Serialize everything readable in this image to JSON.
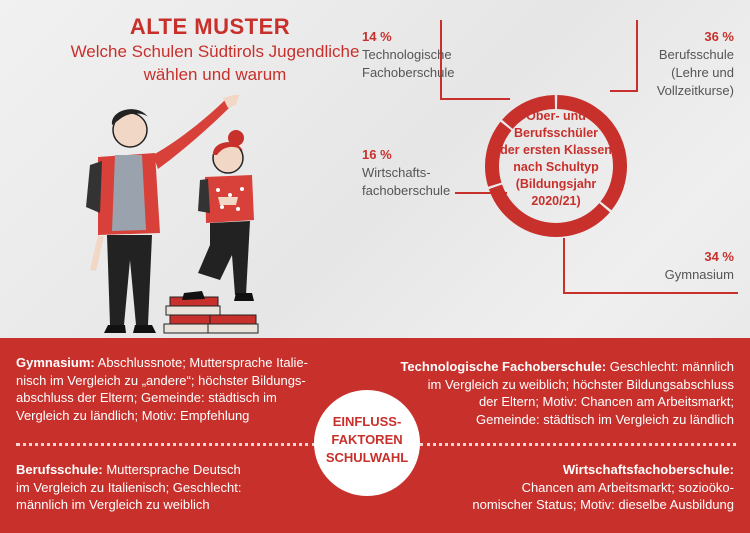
{
  "header": {
    "title": "ALTE MUSTER",
    "subtitle_line1": "Welche Schulen Südtirols Jugendliche",
    "subtitle_line2": "wählen und warum"
  },
  "chart_data": {
    "type": "pie",
    "center_label": [
      "Ober- und",
      "Berufsschüler",
      "der ersten Klassen",
      "nach Schultyp",
      "(Bildungsjahr",
      "2020/21)"
    ],
    "categories": [
      "Berufsschule (Lehre und Vollzeitkurse)",
      "Gymnasium",
      "Wirtschaftsfachoberschule",
      "Technologische Fachoberschule"
    ],
    "values": [
      36,
      34,
      16,
      14
    ],
    "unit": "%",
    "labels": [
      {
        "pct": "36 %",
        "lines": [
          "Berufsschule",
          "(Lehre und",
          "Vollzeitkurse)"
        ]
      },
      {
        "pct": "34 %",
        "lines": [
          "Gymnasium"
        ]
      },
      {
        "pct": "16 %",
        "lines": [
          "Wirtschafts-",
          "fachoberschule"
        ]
      },
      {
        "pct": "14 %",
        "lines": [
          "Technologische",
          "Fachoberschule"
        ]
      }
    ],
    "colors": {
      "ring": "#c8302c",
      "gap": "#efefef"
    }
  },
  "factors": {
    "center": [
      "EINFLUSS-",
      "FAKTOREN",
      "SCHULWAHL"
    ],
    "gymnasium": {
      "label": "Gymnasium:",
      "lines": [
        " Abschlussnote; Muttersprache Italie-",
        "nisch im Vergleich zu „andere“; höchster Bildungs-",
        "abschluss der Eltern; Gemeinde: städtisch im",
        "Vergleich zu ländlich; Motiv: Empfehlung"
      ]
    },
    "technologisch": {
      "label": "Technologische Fachoberschule:",
      "lines": [
        " Geschlecht: männlich",
        "im Vergleich zu weiblich; höchster Bildungsabschluss",
        "der Eltern; Motiv: Chancen am Arbeitsmarkt;",
        "Gemeinde: städtisch im Vergleich zu ländlich"
      ]
    },
    "berufsschule": {
      "label": "Berufsschule:",
      "lines": [
        " Muttersprache Deutsch",
        "im Vergleich zu Italienisch; Geschlecht:",
        "männlich im Vergleich zu weiblich"
      ]
    },
    "wirtschaft": {
      "label": "Wirtschaftsfachoberschule:",
      "lines": [
        "Chancen am Arbeitsmarkt; sozioöko-",
        "nomischer Status; Motiv: dieselbe Ausbildung"
      ]
    }
  },
  "icons": {
    "illustration": "two-students-with-books-illustration"
  },
  "colors": {
    "accent": "#c8302c",
    "band": "#c8302c",
    "text": "#333333"
  }
}
